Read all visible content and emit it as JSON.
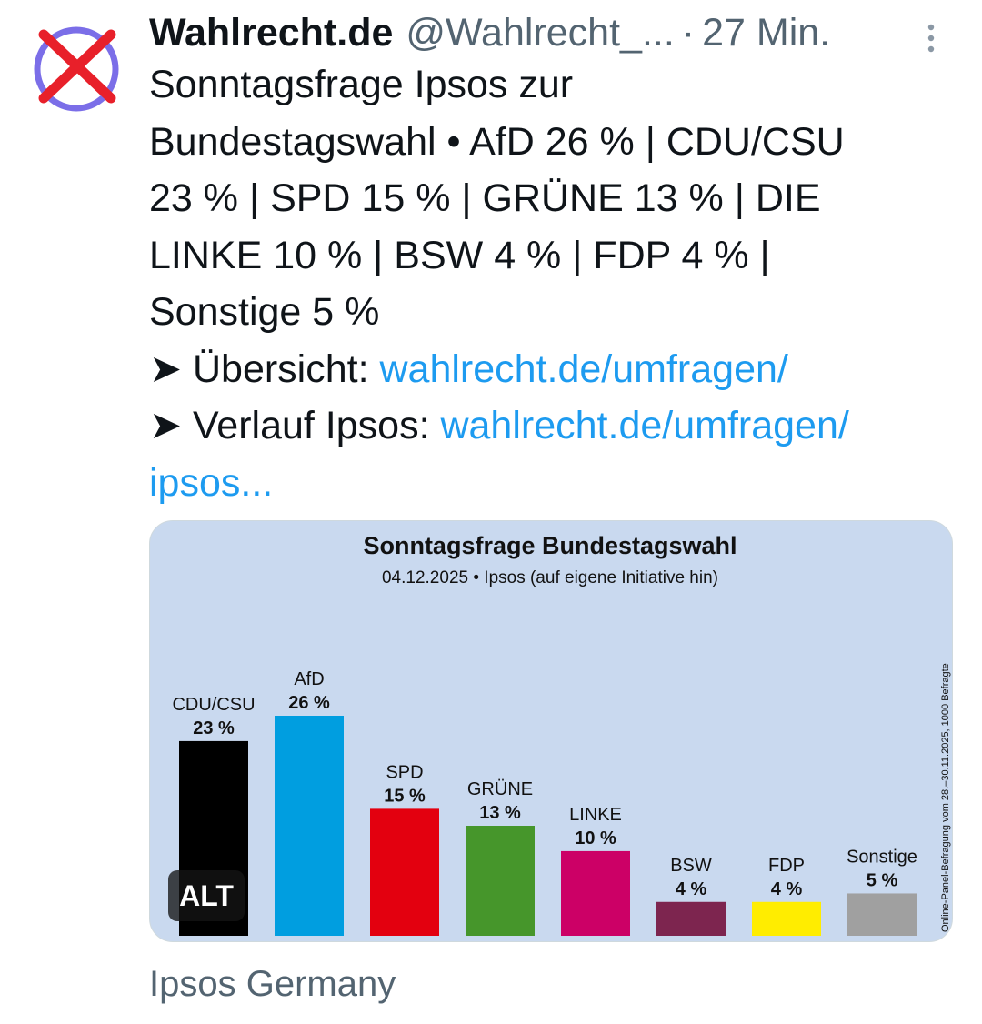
{
  "tweet": {
    "author_name": "Wahlrecht.de",
    "handle": "@Wahlrecht_...",
    "separator": "·",
    "time": "27 Min.",
    "lines": [
      "Sonntagsfrage Ipsos zur",
      "Bundestagswahl • AfD 26 % | CDU/CSU",
      "23 % | SPD 15 % | GRÜNE 13 % | DIE",
      "LINKE 10 % | BSW 4 % | FDP 4 % |",
      "Sonstige 5 %"
    ],
    "overview_prefix": "➤ Übersicht: ",
    "overview_link": "wahlrecht.de/umfragen/",
    "history_prefix": "➤ Verlauf Ipsos: ",
    "history_link_1": "wahlrecht.de/umfragen/",
    "history_link_2": "ipsos...",
    "alt_badge": "ALT",
    "media_source": "Ipsos Germany"
  },
  "icons": {
    "avatar": "ballot-cross-icon",
    "more": "more-vertical-icon"
  },
  "colors": {
    "link": "#1d9bf0",
    "muted": "#536471",
    "chart_background": "#c9d9ef"
  },
  "chart_data": {
    "type": "bar",
    "title": "Sonntagsfrage Bundestagswahl",
    "subtitle": "04.12.2025 • Ipsos (auf eigene Initiative hin)",
    "side_note": "Online-Panel-Befragung vom 28.–30.11.2025, 1000 Befragte",
    "unit": "%",
    "ylim": [
      0,
      26
    ],
    "grid": false,
    "legend": "none",
    "categories": [
      "CDU/CSU",
      "AfD",
      "SPD",
      "GRÜNE",
      "LINKE",
      "BSW",
      "FDP",
      "Sonstige"
    ],
    "values": [
      23,
      26,
      15,
      13,
      10,
      4,
      4,
      5
    ],
    "value_labels": [
      "23 %",
      "26 %",
      "15 %",
      "13 %",
      "10 %",
      "4 %",
      "4 %",
      "5 %"
    ],
    "colors": [
      "#000000",
      "#009ee0",
      "#e3000f",
      "#46962b",
      "#cc0066",
      "#7d254f",
      "#ffed00",
      "#a0a0a0"
    ]
  }
}
